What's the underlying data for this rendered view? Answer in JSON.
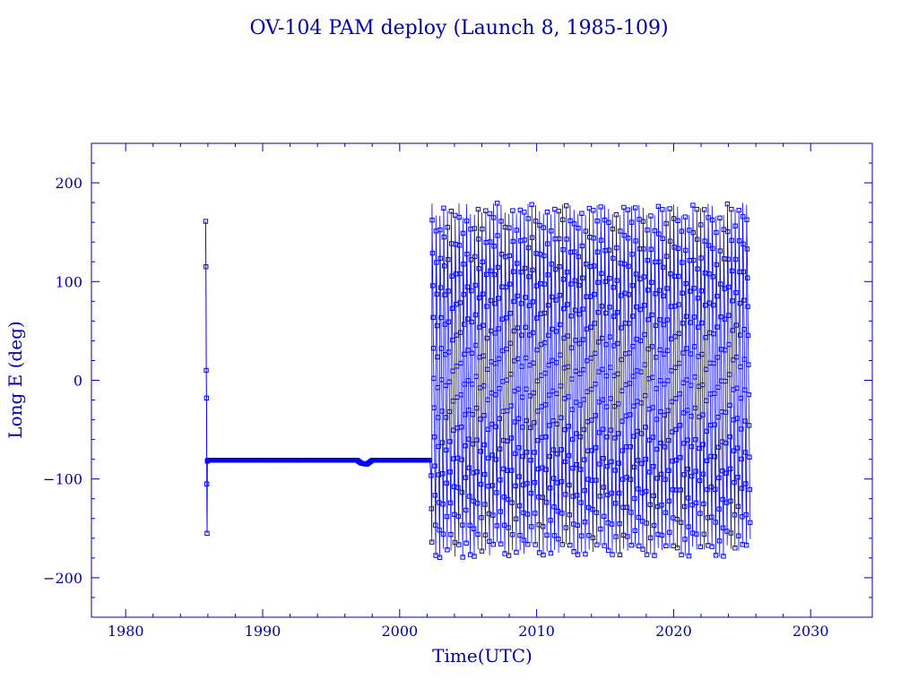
{
  "chart_data": {
    "type": "scatter",
    "title": "OV-104 PAM deploy (Launch 8, 1985-109)",
    "xlabel": "Time(UTC)",
    "ylabel": "Long E (deg)",
    "xlim": [
      1977.5,
      2034.5
    ],
    "ylim": [
      -240,
      240
    ],
    "x_ticks": [
      1980,
      1990,
      2000,
      2010,
      2020,
      2030
    ],
    "x_tick_labels": [
      "1980",
      "1990",
      "2000",
      "2010",
      "2020",
      "2030"
    ],
    "y_ticks": [
      200,
      100,
      0,
      -100,
      -200
    ],
    "y_tick_labels": [
      "200",
      "100",
      "0",
      "−100",
      "−200"
    ],
    "grid": false,
    "legend": "none",
    "marker": "open-square",
    "connected": true,
    "colors": {
      "frame": "#0000aa",
      "text": "#0000aa",
      "series": "#0000ff"
    },
    "series": [
      {
        "segments": [
          {
            "phase": "deploy-drift",
            "x": [
              1985.84,
              1985.86,
              1985.88,
              1985.9,
              1985.92,
              1985.94,
              1985.96
            ],
            "y": [
              161,
              115,
              10,
              -18,
              -105,
              -155,
              -82
            ]
          },
          {
            "phase": "geostationary-station",
            "x": [
              1986.0,
              1988.0,
              1990.0,
              1992.0,
              1994.0,
              1996.0,
              1996.9,
              1997.2,
              1997.6,
              1998.0,
              2000.0,
              2002.0,
              2002.2
            ],
            "y": [
              -81,
              -81,
              -81,
              -81,
              -81,
              -81,
              -81,
              -84,
              -85,
              -81,
              -81,
              -81,
              -81
            ]
          },
          {
            "phase": "drift",
            "x_start": 2002.3,
            "x_end": 2025.6,
            "y_min": -180,
            "y_max": 180,
            "approx_cycle_years": 0.28
          }
        ]
      }
    ]
  }
}
